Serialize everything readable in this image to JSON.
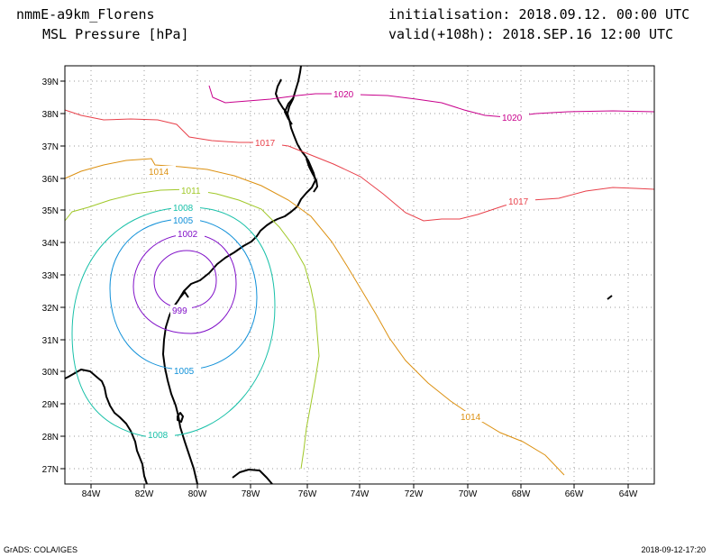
{
  "header": {
    "model": "nmmE-a9km_Florens",
    "field": "MSL Pressure [hPa]",
    "init": "initialisation: 2018.09.12.  00:00 UTC",
    "valid": "valid(+108h): 2018.SEP.16 12:00 UTC"
  },
  "footer": {
    "software": "GrADS: COLA/IGES",
    "timestamp": "2018-09-12-17:20"
  },
  "map": {
    "lon_labels": [
      "84W",
      "82W",
      "80W",
      "78W",
      "76W",
      "74W",
      "72W",
      "70W",
      "68W",
      "66W",
      "64W"
    ],
    "lat_labels": [
      "27N",
      "28N",
      "29N",
      "30N",
      "31N",
      "32N",
      "33N",
      "34N",
      "35N",
      "36N",
      "37N",
      "38N",
      "39N"
    ]
  },
  "contour_labels": [
    {
      "id": "c1020a",
      "text": "1020"
    },
    {
      "id": "c1020b",
      "text": "1020"
    },
    {
      "id": "c1017a",
      "text": "1017"
    },
    {
      "id": "c1017b",
      "text": "1017"
    },
    {
      "id": "c1014a",
      "text": "1014"
    },
    {
      "id": "c1014b",
      "text": "1014"
    },
    {
      "id": "c1011",
      "text": "1011"
    },
    {
      "id": "c1008a",
      "text": "1008"
    },
    {
      "id": "c1008b",
      "text": "1008"
    },
    {
      "id": "c1005a",
      "text": "1005"
    },
    {
      "id": "c1005b",
      "text": "1005"
    },
    {
      "id": "c1002",
      "text": "1002"
    },
    {
      "id": "c999",
      "text": "999"
    }
  ],
  "colors": {
    "c1020": "#c8008c",
    "c1017": "#e8404a",
    "c1014": "#dc9010",
    "c1011": "#a0c828",
    "c1008": "#18c0a8",
    "c1005": "#1090d8",
    "c1002": "#8010c8",
    "c999": "#8010c8"
  }
}
